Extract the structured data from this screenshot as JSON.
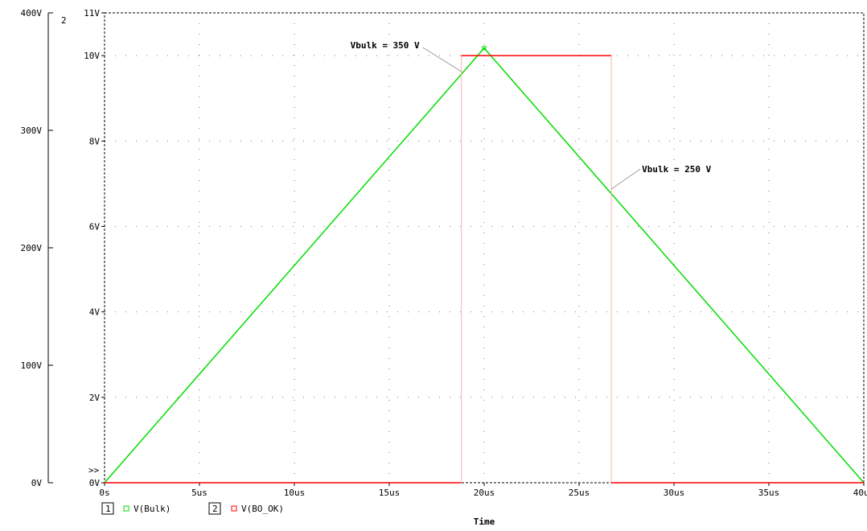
{
  "chart_data": {
    "type": "line",
    "xlabel": "Time",
    "x_ticks": [
      "0s",
      "5us",
      "10us",
      "15us",
      "20us",
      "25us",
      "30us",
      "35us",
      "40us"
    ],
    "xlim": [
      0,
      40
    ],
    "axis1": {
      "id_label": "1",
      "ylim": [
        0,
        400
      ],
      "ticks": [
        "0V",
        "100V",
        "200V",
        "300V",
        "400V"
      ],
      "tick_values": [
        0,
        100,
        200,
        300,
        400
      ]
    },
    "axis2": {
      "id_label": "2",
      "ylim": [
        0,
        11
      ],
      "ticks": [
        "0V",
        "2V",
        "4V",
        "6V",
        "8V",
        "10V",
        "11V"
      ],
      "tick_values": [
        0,
        2,
        4,
        6,
        8,
        10,
        11
      ],
      "marker": ">>"
    },
    "series": [
      {
        "name": "V(Bulk)",
        "axis": 1,
        "color": "#00dd00",
        "x": [
          0,
          20,
          40
        ],
        "y": [
          0,
          370,
          0
        ]
      },
      {
        "name": "V(BO_OK)",
        "axis": 2,
        "color": "#ff0000",
        "x": [
          0,
          18.8,
          18.8,
          26.7,
          26.7,
          40
        ],
        "y": [
          0,
          0,
          10,
          10,
          0,
          0
        ]
      }
    ],
    "legend": [
      {
        "box": "1",
        "marker_color": "#00dd00",
        "label": "V(Bulk)"
      },
      {
        "box": "2",
        "marker_color": "#ff0000",
        "label": "V(BO_OK)"
      }
    ],
    "annotations": [
      {
        "text": "Vbulk = 350 V",
        "x": 18.8,
        "y": 350,
        "axis": 1
      },
      {
        "text": "Vbulk =  250 V",
        "x": 26.7,
        "y": 250,
        "axis": 1
      }
    ]
  }
}
